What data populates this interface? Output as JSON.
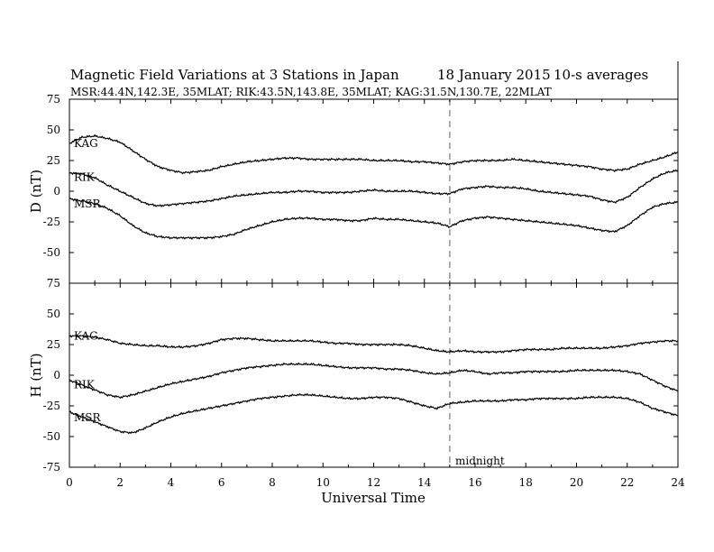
{
  "title": "Magnetic Field Variations at 3 Stations in Japan",
  "date": "18 January 2015",
  "averaging": "10-s averages",
  "stations": "MSR:44.4N,142.3E, 35MLAT;  RIK:43.5N,143.8E, 35MLAT;  KAG:31.5N,130.7E, 22MLAT",
  "xlabel": "Universal Time",
  "annotation": "midnight",
  "chart_data": [
    {
      "type": "line",
      "panel": "D",
      "ylabel": "D (nT)",
      "xlim": [
        0,
        24
      ],
      "ylim": [
        -75,
        75
      ],
      "xticks": [
        0,
        2,
        4,
        6,
        8,
        10,
        12,
        14,
        16,
        18,
        20,
        22,
        24
      ],
      "yticks": [
        -75,
        -50,
        -25,
        0,
        25,
        50,
        75
      ],
      "midnight_ut": 15,
      "series": [
        {
          "name": "KAG",
          "x": [
            0,
            0.5,
            1,
            1.5,
            2,
            2.5,
            3,
            3.5,
            4,
            4.5,
            5,
            5.5,
            6,
            6.5,
            7,
            7.5,
            8,
            8.5,
            9,
            9.5,
            10,
            10.5,
            11,
            11.5,
            12,
            12.5,
            13,
            13.5,
            14,
            14.5,
            15,
            15.5,
            16,
            16.5,
            17,
            17.5,
            18,
            18.5,
            19,
            19.5,
            20,
            20.5,
            21,
            21.5,
            22,
            22.5,
            23,
            23.5,
            24
          ],
          "y": [
            39,
            44,
            45,
            43,
            40,
            33,
            26,
            20,
            17,
            15,
            16,
            17,
            20,
            22,
            24,
            25,
            26,
            27,
            27,
            26,
            26,
            26,
            26,
            26,
            25,
            25,
            25,
            24,
            24,
            23,
            22,
            24,
            25,
            25,
            25,
            26,
            25,
            24,
            23,
            22,
            21,
            20,
            18,
            17,
            18,
            22,
            25,
            28,
            32
          ]
        },
        {
          "name": "RIK",
          "x": [
            0,
            0.5,
            1,
            1.5,
            2,
            2.5,
            3,
            3.5,
            4,
            4.5,
            5,
            5.5,
            6,
            6.5,
            7,
            7.5,
            8,
            8.5,
            9,
            9.5,
            10,
            10.5,
            11,
            11.5,
            12,
            12.5,
            13,
            13.5,
            14,
            14.5,
            15,
            15.5,
            16,
            16.5,
            17,
            17.5,
            18,
            18.5,
            19,
            19.5,
            20,
            20.5,
            21,
            21.5,
            22,
            22.5,
            23,
            23.5,
            24
          ],
          "y": [
            15,
            14,
            11,
            5,
            0,
            -5,
            -10,
            -12,
            -11,
            -10,
            -9,
            -8,
            -6,
            -4,
            -3,
            -2,
            -1,
            -1,
            0,
            0,
            -1,
            -1,
            -1,
            0,
            1,
            0,
            0,
            0,
            -1,
            -2,
            -2,
            2,
            3,
            4,
            3,
            3,
            2,
            0,
            -1,
            -2,
            -3,
            -4,
            -7,
            -9,
            -5,
            3,
            10,
            15,
            17
          ]
        },
        {
          "name": "MSR",
          "x": [
            0,
            0.5,
            1,
            1.5,
            2,
            2.5,
            3,
            3.5,
            4,
            4.5,
            5,
            5.5,
            6,
            6.5,
            7,
            7.5,
            8,
            8.5,
            9,
            9.5,
            10,
            10.5,
            11,
            11.5,
            12,
            12.5,
            13,
            13.5,
            14,
            14.5,
            15,
            15.5,
            16,
            16.5,
            17,
            17.5,
            18,
            18.5,
            19,
            19.5,
            20,
            20.5,
            21,
            21.5,
            22,
            22.5,
            23,
            23.5,
            24
          ],
          "y": [
            -6,
            -8,
            -10,
            -14,
            -20,
            -28,
            -34,
            -37,
            -38,
            -38,
            -38,
            -38,
            -37,
            -35,
            -31,
            -28,
            -25,
            -23,
            -22,
            -22,
            -23,
            -23,
            -24,
            -24,
            -22,
            -23,
            -23,
            -24,
            -25,
            -26,
            -29,
            -24,
            -22,
            -21,
            -22,
            -23,
            -24,
            -25,
            -26,
            -27,
            -28,
            -30,
            -32,
            -33,
            -28,
            -20,
            -13,
            -10,
            -9
          ]
        }
      ]
    },
    {
      "type": "line",
      "panel": "H",
      "ylabel": "H (nT)",
      "xlim": [
        0,
        24
      ],
      "ylim": [
        -75,
        75
      ],
      "xticks": [
        0,
        2,
        4,
        6,
        8,
        10,
        12,
        14,
        16,
        18,
        20,
        22,
        24
      ],
      "yticks": [
        -75,
        -50,
        -25,
        0,
        25,
        50,
        75
      ],
      "midnight_ut": 15,
      "series": [
        {
          "name": "KAG",
          "x": [
            0,
            0.5,
            1,
            1.5,
            2,
            2.5,
            3,
            3.5,
            4,
            4.5,
            5,
            5.5,
            6,
            6.5,
            7,
            7.5,
            8,
            8.5,
            9,
            9.5,
            10,
            10.5,
            11,
            11.5,
            12,
            12.5,
            13,
            13.5,
            14,
            14.5,
            15,
            15.5,
            16,
            16.5,
            17,
            17.5,
            18,
            18.5,
            19,
            19.5,
            20,
            20.5,
            21,
            21.5,
            22,
            22.5,
            23,
            23.5,
            24
          ],
          "y": [
            32,
            32,
            31,
            29,
            26,
            25,
            24,
            24,
            23,
            23,
            24,
            26,
            29,
            30,
            30,
            29,
            28,
            28,
            28,
            28,
            27,
            26,
            26,
            25,
            25,
            25,
            25,
            24,
            22,
            20,
            19,
            20,
            19,
            19,
            19,
            20,
            21,
            21,
            21,
            22,
            22,
            22,
            22,
            23,
            24,
            26,
            27,
            28,
            28
          ]
        },
        {
          "name": "RIK",
          "x": [
            0,
            0.5,
            1,
            1.5,
            2,
            2.5,
            3,
            3.5,
            4,
            4.5,
            5,
            5.5,
            6,
            6.5,
            7,
            7.5,
            8,
            8.5,
            9,
            9.5,
            10,
            10.5,
            11,
            11.5,
            12,
            12.5,
            13,
            13.5,
            14,
            14.5,
            15,
            15.5,
            16,
            16.5,
            17,
            17.5,
            18,
            18.5,
            19,
            19.5,
            20,
            20.5,
            21,
            21.5,
            22,
            22.5,
            23,
            23.5,
            24
          ],
          "y": [
            -4,
            -8,
            -12,
            -16,
            -18,
            -16,
            -13,
            -10,
            -7,
            -5,
            -3,
            -1,
            2,
            4,
            6,
            7,
            8,
            9,
            9,
            9,
            8,
            7,
            6,
            6,
            6,
            5,
            5,
            4,
            2,
            1,
            2,
            4,
            3,
            1,
            2,
            2,
            3,
            3,
            3,
            3,
            4,
            4,
            4,
            4,
            3,
            1,
            -4,
            -9,
            -13
          ]
        },
        {
          "name": "MSR",
          "x": [
            0,
            0.5,
            1,
            1.5,
            2,
            2.5,
            3,
            3.5,
            4,
            4.5,
            5,
            5.5,
            6,
            6.5,
            7,
            7.5,
            8,
            8.5,
            9,
            9.5,
            10,
            10.5,
            11,
            11.5,
            12,
            12.5,
            13,
            13.5,
            14,
            14.5,
            15,
            15.5,
            16,
            16.5,
            17,
            17.5,
            18,
            18.5,
            19,
            19.5,
            20,
            20.5,
            21,
            21.5,
            22,
            22.5,
            23,
            23.5,
            24
          ],
          "y": [
            -30,
            -34,
            -38,
            -42,
            -46,
            -47,
            -43,
            -38,
            -34,
            -31,
            -29,
            -27,
            -25,
            -23,
            -21,
            -19,
            -18,
            -17,
            -16,
            -16,
            -17,
            -18,
            -19,
            -19,
            -18,
            -18,
            -19,
            -22,
            -25,
            -27,
            -23,
            -22,
            -21,
            -21,
            -21,
            -20,
            -20,
            -19,
            -19,
            -19,
            -19,
            -18,
            -18,
            -18,
            -19,
            -22,
            -27,
            -30,
            -33
          ]
        }
      ]
    }
  ]
}
